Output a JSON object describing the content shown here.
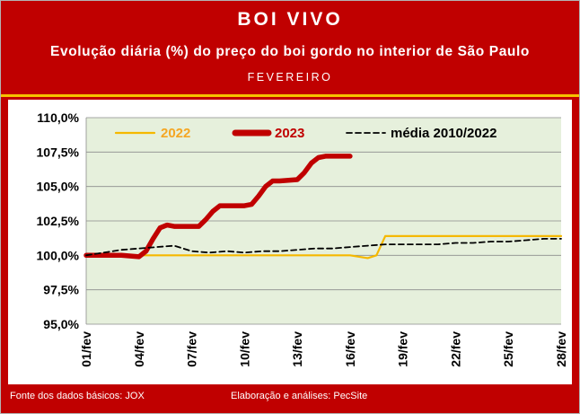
{
  "header": {
    "title": "BOI VIVO",
    "subtitle": "Evolução diária (%) do preço do boi gordo no interior de São Paulo",
    "month": "FEVEREIRO"
  },
  "footer": {
    "source": "Fonte dos dados básicos: JOX",
    "credit": "Elaboração e análises: PecSite"
  },
  "colors": {
    "banner": "#c00000",
    "stripe": "#f5c400",
    "plot_bg": "#e6f0dc",
    "series_2022": "#f5b800",
    "series_2023": "#c00000",
    "series_media": "#000000"
  },
  "chart_data": {
    "type": "line",
    "x_ticks": [
      "01/fev",
      "04/fev",
      "07/fev",
      "10/fev",
      "13/fev",
      "16/fev",
      "19/fev",
      "22/fev",
      "25/fev",
      "28/fev"
    ],
    "ylim": [
      95.0,
      110.0
    ],
    "y_ticks": [
      "95,0%",
      "97,5%",
      "100,0%",
      "102,5%",
      "105,0%",
      "107,5%",
      "110,0%"
    ],
    "grid": "horizontal",
    "legend_position": "top",
    "series": [
      {
        "name": "2022",
        "x": [
          1,
          2,
          3,
          4,
          5,
          6,
          7,
          8,
          9,
          10,
          11,
          12,
          13,
          14,
          15,
          16,
          17,
          17.5,
          18,
          19,
          20,
          21,
          22,
          23,
          24,
          25,
          26,
          27,
          28
        ],
        "values": [
          100.0,
          100.0,
          100.0,
          100.0,
          100.0,
          100.0,
          100.0,
          100.0,
          100.0,
          100.0,
          100.0,
          100.0,
          100.0,
          100.0,
          100.0,
          100.0,
          99.8,
          100.0,
          101.4,
          101.4,
          101.4,
          101.4,
          101.4,
          101.4,
          101.4,
          101.4,
          101.4,
          101.4,
          101.4
        ]
      },
      {
        "name": "2023",
        "x": [
          1,
          2,
          3,
          4,
          4.4,
          4.8,
          5.2,
          5.6,
          6,
          7,
          7.4,
          7.8,
          8.2,
          8.6,
          9,
          10,
          10.4,
          10.8,
          11.2,
          11.6,
          12,
          13,
          13.4,
          13.8,
          14.2,
          14.6,
          15,
          15.5,
          16
        ],
        "values": [
          100.0,
          100.0,
          100.0,
          99.9,
          100.3,
          101.2,
          102.0,
          102.2,
          102.1,
          102.1,
          102.1,
          102.6,
          103.2,
          103.6,
          103.6,
          103.6,
          103.7,
          104.3,
          105.0,
          105.4,
          105.4,
          105.5,
          106.0,
          106.7,
          107.1,
          107.2,
          107.2,
          107.2,
          107.2
        ]
      },
      {
        "name": "média 2010/2022",
        "x": [
          1,
          2,
          3,
          4,
          5,
          6,
          7,
          8,
          9,
          10,
          11,
          12,
          13,
          14,
          15,
          16,
          17,
          18,
          19,
          20,
          21,
          22,
          23,
          24,
          25,
          26,
          27,
          28
        ],
        "values": [
          100.0,
          100.2,
          100.4,
          100.5,
          100.6,
          100.7,
          100.3,
          100.2,
          100.3,
          100.2,
          100.3,
          100.3,
          100.4,
          100.5,
          100.5,
          100.6,
          100.7,
          100.8,
          100.8,
          100.8,
          100.8,
          100.9,
          100.9,
          101.0,
          101.0,
          101.1,
          101.2,
          101.2
        ]
      }
    ]
  }
}
